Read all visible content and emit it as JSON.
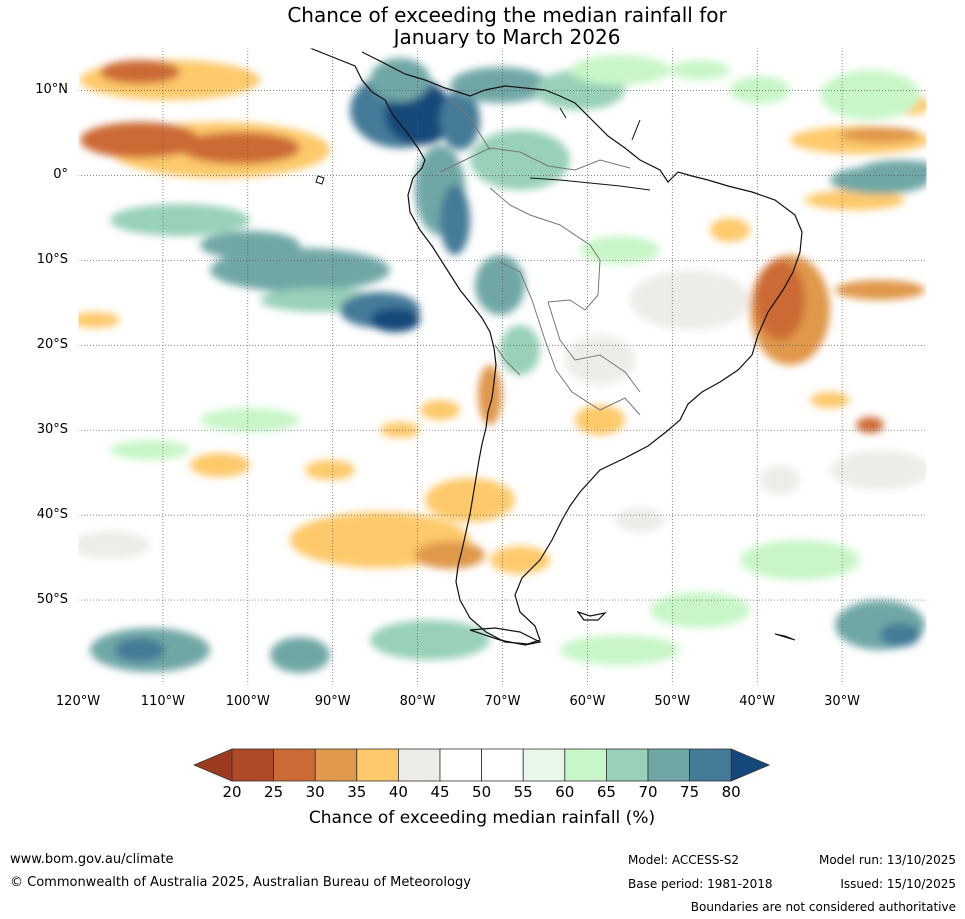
{
  "title": {
    "line1": "Chance of exceeding the median rainfall for",
    "line2": "January to March 2026"
  },
  "map": {
    "lat_labels": [
      "10°N",
      "0°",
      "10°S",
      "20°S",
      "30°S",
      "40°S",
      "50°S"
    ],
    "lon_labels": [
      "120°W",
      "110°W",
      "100°W",
      "90°W",
      "80°W",
      "70°W",
      "60°W",
      "50°W",
      "40°W",
      "30°W"
    ],
    "extent": {
      "lon_min": -120,
      "lon_max": -20,
      "lat_min": -60,
      "lat_max": 15
    }
  },
  "colorbar": {
    "ticks": [
      "20",
      "25",
      "30",
      "35",
      "40",
      "45",
      "50",
      "55",
      "60",
      "65",
      "70",
      "75",
      "80"
    ],
    "colors": [
      "#9c3b20",
      "#b04a26",
      "#cc6a35",
      "#e0984c",
      "#fdc96a",
      "#eeece7",
      "#ffffff",
      "#ffffff",
      "#e9f6ea",
      "#c8f6c8",
      "#98d0b8",
      "#6fa7a6",
      "#457a98",
      "#15487a",
      "#0d3f70"
    ],
    "label": "Chance of exceeding median rainfall (%)"
  },
  "footer": {
    "website": "www.bom.gov.au/climate",
    "copyright": "© Commonwealth of Australia 2025, Australian Bureau of Meteorology",
    "model": "Model: ACCESS-S2",
    "base_period": "Base period: 1981-2018",
    "model_run": "Model run: 13/10/2025",
    "issued": "Issued: 15/10/2025",
    "disclaimer": "Boundaries are not considered authoritative"
  }
}
